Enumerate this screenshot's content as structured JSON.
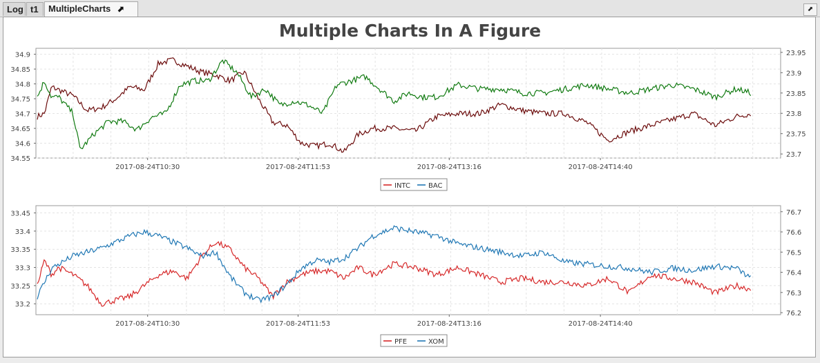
{
  "tabs": [
    {
      "label": "Log",
      "active": false
    },
    {
      "label": "t1",
      "active": false
    },
    {
      "label": "MultipleCharts",
      "active": true
    }
  ],
  "tab_controls": {
    "popout": "⬈",
    "close": "✕"
  },
  "colors": {
    "red": "#d62728",
    "blue": "#1f77b4",
    "darkred": "#6b0b0b",
    "green": "#107a10"
  },
  "chart_data": {
    "title": "Multiple Charts In A Figure",
    "charts": [
      {
        "type": "line",
        "x_ticks": [
          "2017-08-24T10:30",
          "2017-08-24T11:53",
          "2017-08-24T13:16",
          "2017-08-24T14:40"
        ],
        "y_left": {
          "ticks": [
            "34.9",
            "34.85",
            "34.8",
            "34.75",
            "34.7",
            "34.65",
            "34.6",
            "34.55"
          ],
          "range": [
            34.55,
            34.92
          ]
        },
        "y_right": {
          "ticks": [
            "23.95",
            "23.9",
            "23.85",
            "23.8",
            "23.75",
            "23.7"
          ],
          "range": [
            23.69,
            23.96
          ]
        },
        "legend": {
          "position": "bottom-center",
          "entries": [
            {
              "name": "INTC",
              "color": "#d62728"
            },
            {
              "name": "BAC",
              "color": "#1f77b4"
            }
          ]
        },
        "series": [
          {
            "name": "INTC",
            "axis": "left",
            "color": "#6b0b0b",
            "x": [
              0,
              0.01,
              0.02,
              0.03,
              0.05,
              0.07,
              0.09,
              0.11,
              0.13,
              0.15,
              0.17,
              0.19,
              0.21,
              0.23,
              0.25,
              0.27,
              0.29,
              0.31,
              0.33,
              0.35,
              0.37,
              0.39,
              0.41,
              0.43,
              0.45,
              0.47,
              0.5,
              0.53,
              0.56,
              0.59,
              0.62,
              0.65,
              0.68,
              0.71,
              0.74,
              0.77,
              0.8,
              0.83,
              0.86,
              0.89,
              0.92,
              0.95,
              0.98,
              1.0
            ],
            "values": [
              34.69,
              34.7,
              34.79,
              34.78,
              34.76,
              34.71,
              34.72,
              34.75,
              34.79,
              34.78,
              34.87,
              34.88,
              34.86,
              34.84,
              34.83,
              34.81,
              34.84,
              34.75,
              34.67,
              34.66,
              34.6,
              34.59,
              34.6,
              34.57,
              34.63,
              34.65,
              34.65,
              34.64,
              34.69,
              34.7,
              34.7,
              34.73,
              34.71,
              34.7,
              34.7,
              34.67,
              34.61,
              34.64,
              34.66,
              34.68,
              34.7,
              34.66,
              34.69,
              34.7
            ]
          },
          {
            "name": "BAC",
            "axis": "right",
            "color": "#107a10",
            "x": [
              0,
              0.01,
              0.02,
              0.03,
              0.05,
              0.06,
              0.08,
              0.1,
              0.12,
              0.14,
              0.16,
              0.18,
              0.2,
              0.22,
              0.24,
              0.26,
              0.28,
              0.3,
              0.32,
              0.34,
              0.36,
              0.38,
              0.4,
              0.42,
              0.44,
              0.46,
              0.48,
              0.5,
              0.52,
              0.54,
              0.56,
              0.59,
              0.62,
              0.65,
              0.68,
              0.71,
              0.74,
              0.77,
              0.8,
              0.83,
              0.86,
              0.89,
              0.92,
              0.95,
              0.98,
              1.0
            ],
            "values": [
              23.84,
              23.88,
              23.84,
              23.84,
              23.8,
              23.71,
              23.75,
              23.78,
              23.78,
              23.76,
              23.79,
              23.8,
              23.87,
              23.88,
              23.88,
              23.93,
              23.9,
              23.84,
              23.86,
              23.82,
              23.83,
              23.82,
              23.8,
              23.87,
              23.88,
              23.89,
              23.86,
              23.83,
              23.85,
              23.84,
              23.84,
              23.87,
              23.86,
              23.86,
              23.85,
              23.85,
              23.86,
              23.87,
              23.86,
              23.85,
              23.86,
              23.87,
              23.86,
              23.84,
              23.86,
              23.85
            ]
          }
        ]
      },
      {
        "type": "line",
        "x_ticks": [
          "2017-08-24T10:30",
          "2017-08-24T11:53",
          "2017-08-24T13:16",
          "2017-08-24T14:40"
        ],
        "y_left": {
          "ticks": [
            "33.45",
            "33.4",
            "33.35",
            "33.3",
            "33.25",
            "33.2"
          ],
          "range": [
            33.17,
            33.47
          ]
        },
        "y_right": {
          "ticks": [
            "76.7",
            "76.6",
            "76.5",
            "76.4",
            "76.3",
            "76.2"
          ],
          "range": [
            76.19,
            76.73
          ]
        },
        "legend": {
          "position": "bottom-center",
          "entries": [
            {
              "name": "PFE",
              "color": "#d62728"
            },
            {
              "name": "XOM",
              "color": "#1f77b4"
            }
          ]
        },
        "series": [
          {
            "name": "PFE",
            "axis": "left",
            "color": "#d62728",
            "x": [
              0,
              0.01,
              0.02,
              0.03,
              0.05,
              0.07,
              0.09,
              0.11,
              0.13,
              0.15,
              0.17,
              0.19,
              0.21,
              0.23,
              0.25,
              0.27,
              0.29,
              0.31,
              0.33,
              0.35,
              0.37,
              0.39,
              0.41,
              0.43,
              0.45,
              0.47,
              0.5,
              0.53,
              0.56,
              0.59,
              0.62,
              0.65,
              0.68,
              0.71,
              0.74,
              0.77,
              0.8,
              0.83,
              0.86,
              0.89,
              0.92,
              0.95,
              0.98,
              1.0
            ],
            "values": [
              33.25,
              33.32,
              33.28,
              33.3,
              33.28,
              33.25,
              33.2,
              33.21,
              33.22,
              33.25,
              33.28,
              33.29,
              33.27,
              33.33,
              33.37,
              33.35,
              33.3,
              33.27,
              33.22,
              33.26,
              33.28,
              33.29,
              33.29,
              33.27,
              33.3,
              33.28,
              33.31,
              33.3,
              33.28,
              33.3,
              33.28,
              33.26,
              33.27,
              33.26,
              33.26,
              33.25,
              33.27,
              33.23,
              33.28,
              33.27,
              33.26,
              33.23,
              33.25,
              33.24
            ]
          },
          {
            "name": "XOM",
            "axis": "right",
            "color": "#1f77b4",
            "x": [
              0,
              0.01,
              0.02,
              0.03,
              0.05,
              0.07,
              0.09,
              0.11,
              0.13,
              0.15,
              0.17,
              0.19,
              0.21,
              0.23,
              0.25,
              0.27,
              0.29,
              0.31,
              0.33,
              0.35,
              0.37,
              0.39,
              0.41,
              0.43,
              0.45,
              0.47,
              0.5,
              0.53,
              0.56,
              0.59,
              0.62,
              0.65,
              0.68,
              0.71,
              0.74,
              0.77,
              0.8,
              0.83,
              0.86,
              0.89,
              0.92,
              0.95,
              0.98,
              1.0
            ],
            "values": [
              76.28,
              76.35,
              76.42,
              76.44,
              76.48,
              76.5,
              76.52,
              76.55,
              76.58,
              76.6,
              76.58,
              76.55,
              76.52,
              76.48,
              76.5,
              76.38,
              76.3,
              76.26,
              76.28,
              76.34,
              76.42,
              76.46,
              76.45,
              76.47,
              76.52,
              76.58,
              76.62,
              76.6,
              76.58,
              76.54,
              76.52,
              76.5,
              76.48,
              76.5,
              76.45,
              76.44,
              76.43,
              76.42,
              76.4,
              76.42,
              76.41,
              76.43,
              76.42,
              76.37
            ]
          }
        ]
      }
    ]
  }
}
